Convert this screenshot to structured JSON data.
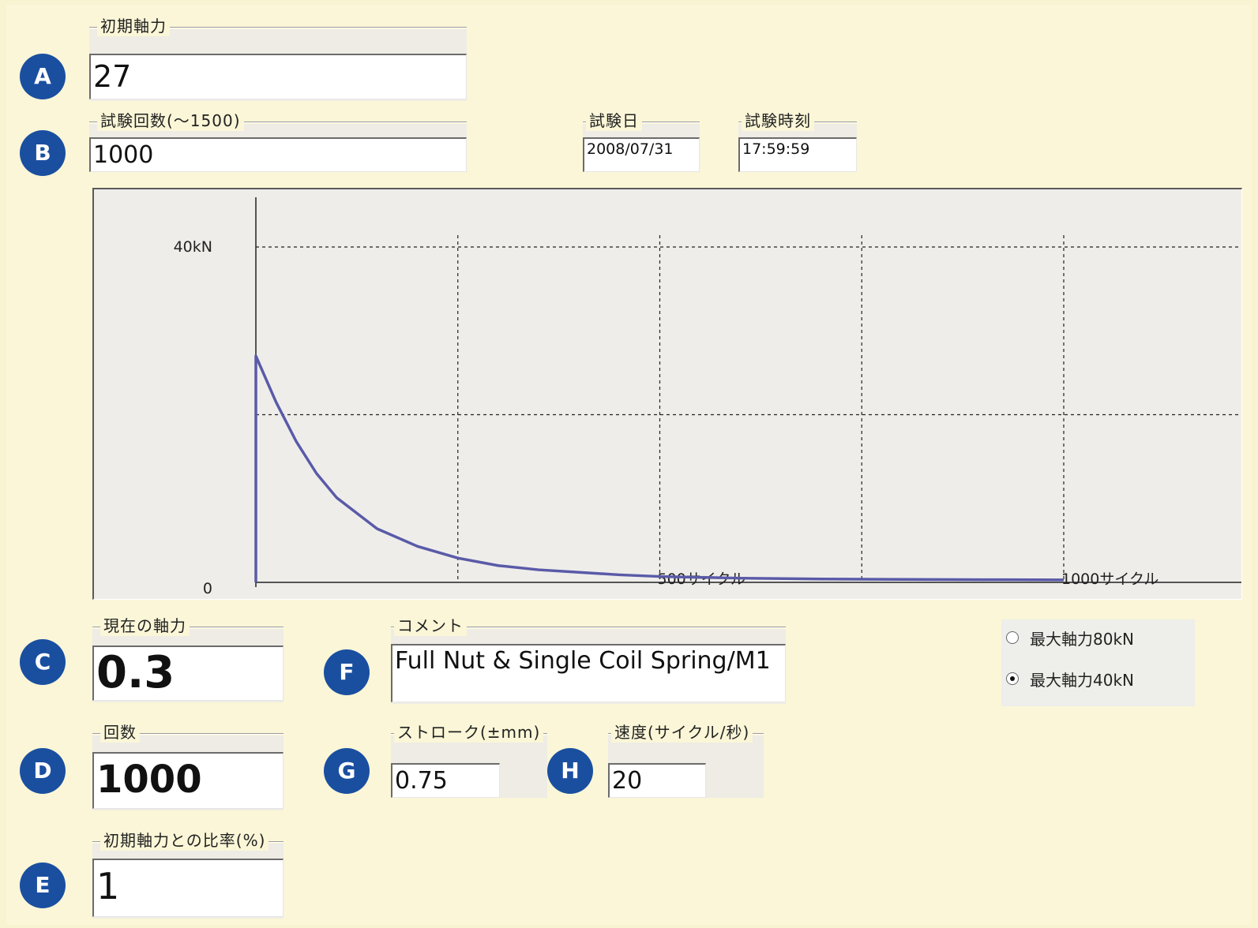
{
  "initial_force": {
    "label": "初期軸力",
    "value": "27",
    "badge": "A"
  },
  "test_count": {
    "label": "試験回数(〜1500)",
    "value": "1000",
    "badge": "B"
  },
  "test_date": {
    "label": "試験日",
    "value": "2008/07/31"
  },
  "test_time": {
    "label": "試験時刻",
    "value": "17:59:59"
  },
  "current_force": {
    "label": "現在の軸力",
    "value": "0.3",
    "badge": "C"
  },
  "cycles": {
    "label": "回数",
    "value": "1000",
    "badge": "D"
  },
  "ratio": {
    "label": "初期軸力との比率(%)",
    "value": "1",
    "badge": "E"
  },
  "comment": {
    "label": "コメント",
    "value": "Full Nut & Single Coil Spring/M1",
    "badge": "F"
  },
  "stroke": {
    "label": "ストローク(±mm)",
    "value": "0.75",
    "badge": "G"
  },
  "speed": {
    "label": "速度(サイクル/秒)",
    "value": "20",
    "badge": "H"
  },
  "max_force": {
    "options": [
      {
        "label": "最大軸力80kN",
        "selected": false
      },
      {
        "label": "最大軸力40kN",
        "selected": true
      }
    ]
  },
  "colors": {
    "badge": "#1a4fa0",
    "curve": "#5a5aa8",
    "background": "#f8f4d2"
  },
  "chart_data": {
    "type": "line",
    "title": "",
    "xlabel": "",
    "ylabel": "",
    "xlim": [
      0,
      1000
    ],
    "ylim": [
      0,
      40
    ],
    "x_ticks": [
      {
        "x": 500,
        "label": "500サイクル"
      },
      {
        "x": 1000,
        "label": "1000サイクル"
      }
    ],
    "y_ticks": [
      {
        "y": 0,
        "label": "0"
      },
      {
        "y": 40,
        "label": "40kN"
      }
    ],
    "grid": true,
    "series": [
      {
        "x": [
          0,
          0,
          25,
          50,
          75,
          100,
          150,
          200,
          250,
          300,
          350,
          400,
          450,
          500,
          600,
          700,
          800,
          900,
          1000
        ],
        "values": [
          0,
          27,
          21.5,
          16.8,
          13.0,
          10.1,
          6.4,
          4.3,
          2.9,
          2.0,
          1.5,
          1.2,
          0.9,
          0.7,
          0.5,
          0.4,
          0.35,
          0.32,
          0.3
        ]
      }
    ]
  }
}
